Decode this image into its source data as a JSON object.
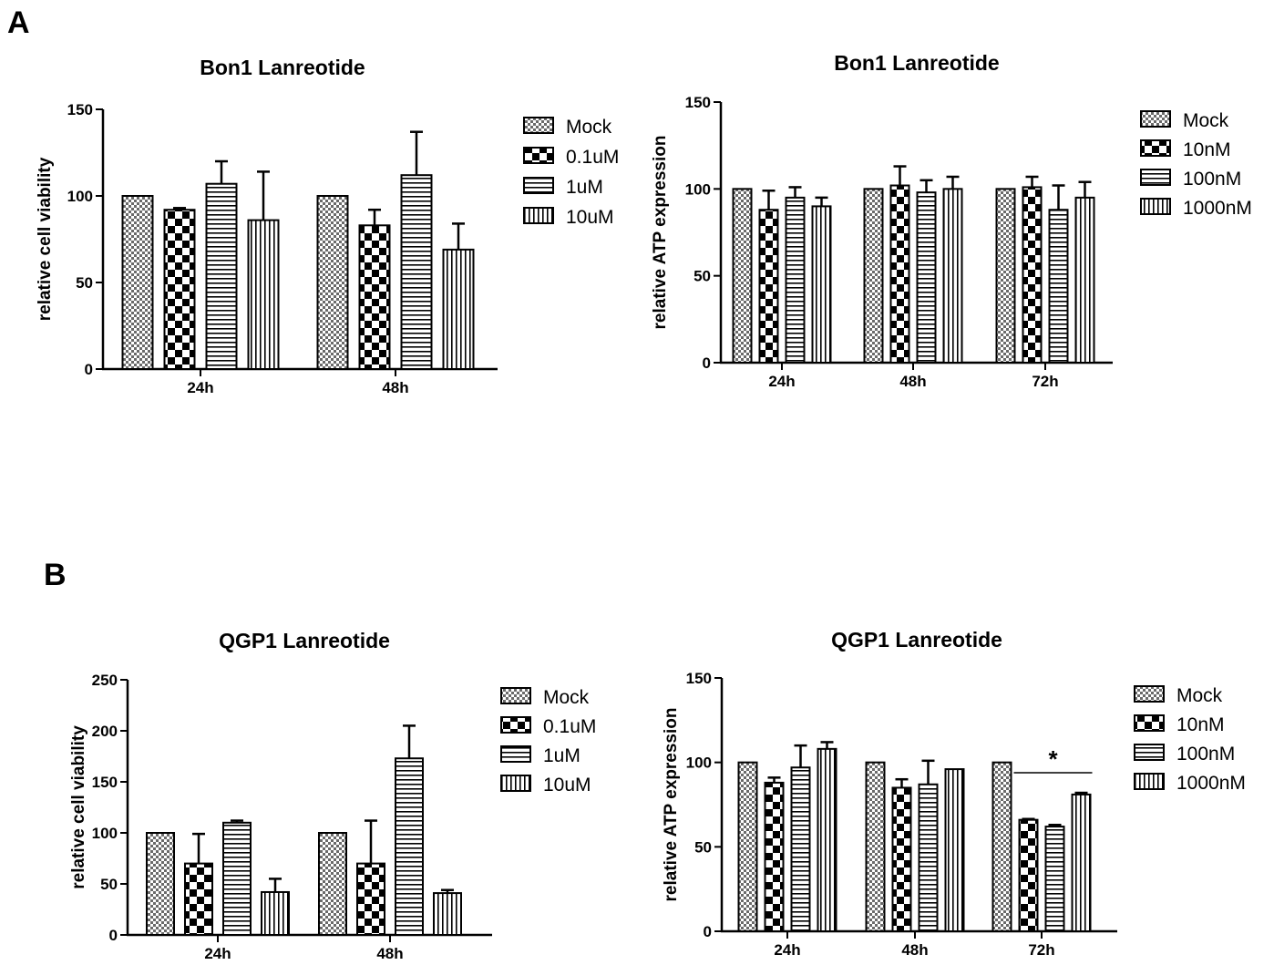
{
  "panels": [
    "A",
    "B"
  ],
  "chart_data": [
    {
      "type": "bar",
      "title": "Bon1 Lanreotide",
      "ylabel": "relative cell viability",
      "xlabel": "",
      "ylim": [
        0,
        150
      ],
      "yticks": [
        0,
        50,
        100,
        150
      ],
      "categories": [
        "24h",
        "48h"
      ],
      "series": [
        {
          "name": "Mock",
          "pattern": "checker-fine",
          "values": [
            100,
            100
          ],
          "errors": [
            0,
            0
          ]
        },
        {
          "name": "0.1uM",
          "pattern": "checker",
          "values": [
            92,
            83
          ],
          "errors": [
            1,
            9
          ]
        },
        {
          "name": "1uM",
          "pattern": "hstripe",
          "values": [
            107,
            112
          ],
          "errors": [
            13,
            25
          ]
        },
        {
          "name": "10uM",
          "pattern": "vstripe",
          "values": [
            86,
            69
          ],
          "errors": [
            28,
            15
          ]
        }
      ],
      "legend_position": "right",
      "grid": false
    },
    {
      "type": "bar",
      "title": "Bon1 Lanreotide",
      "ylabel": "relative ATP expression",
      "xlabel": "",
      "ylim": [
        0,
        150
      ],
      "yticks": [
        0,
        50,
        100,
        150
      ],
      "categories": [
        "24h",
        "48h",
        "72h"
      ],
      "series": [
        {
          "name": "Mock",
          "pattern": "checker-fine",
          "values": [
            100,
            100,
            100
          ],
          "errors": [
            0,
            0,
            0
          ]
        },
        {
          "name": "10nM",
          "pattern": "checker",
          "values": [
            88,
            102,
            101
          ],
          "errors": [
            11,
            11,
            6
          ]
        },
        {
          "name": "100nM",
          "pattern": "hstripe",
          "values": [
            95,
            98,
            88
          ],
          "errors": [
            6,
            7,
            14
          ]
        },
        {
          "name": "1000nM",
          "pattern": "vstripe",
          "values": [
            90,
            100,
            95
          ],
          "errors": [
            5,
            7,
            9
          ]
        }
      ],
      "legend_position": "right",
      "grid": false
    },
    {
      "type": "bar",
      "title": "QGP1 Lanreotide",
      "ylabel": "relative cell viability",
      "xlabel": "",
      "ylim": [
        0,
        250
      ],
      "yticks": [
        0,
        50,
        100,
        150,
        200,
        250
      ],
      "categories": [
        "24h",
        "48h"
      ],
      "series": [
        {
          "name": "Mock",
          "pattern": "checker-fine",
          "values": [
            100,
            100
          ],
          "errors": [
            0,
            0
          ]
        },
        {
          "name": "0.1uM",
          "pattern": "checker",
          "values": [
            70,
            70
          ],
          "errors": [
            29,
            42
          ]
        },
        {
          "name": "1uM",
          "pattern": "hstripe",
          "values": [
            110,
            173
          ],
          "errors": [
            2,
            32
          ]
        },
        {
          "name": "10uM",
          "pattern": "vstripe",
          "values": [
            42,
            41
          ],
          "errors": [
            13,
            3
          ]
        }
      ],
      "legend_position": "right",
      "grid": false
    },
    {
      "type": "bar",
      "title": "QGP1 Lanreotide",
      "ylabel": "relative ATP expression",
      "xlabel": "",
      "ylim": [
        0,
        150
      ],
      "yticks": [
        0,
        50,
        100,
        150
      ],
      "categories": [
        "24h",
        "48h",
        "72h"
      ],
      "series": [
        {
          "name": "Mock",
          "pattern": "checker-fine",
          "values": [
            100,
            100,
            100
          ],
          "errors": [
            0,
            0,
            0
          ]
        },
        {
          "name": "10nM",
          "pattern": "checker",
          "values": [
            88,
            85,
            66
          ],
          "errors": [
            3,
            5,
            0.5
          ]
        },
        {
          "name": "100nM",
          "pattern": "hstripe",
          "values": [
            97,
            87,
            62
          ],
          "errors": [
            13,
            14,
            1
          ]
        },
        {
          "name": "1000nM",
          "pattern": "vstripe",
          "values": [
            108,
            96,
            81
          ],
          "errors": [
            4,
            0,
            1
          ]
        }
      ],
      "annotations": [
        {
          "text": "*",
          "category": "72h",
          "series_span": [
            "10nM",
            "1000nM"
          ]
        }
      ],
      "legend_position": "right",
      "grid": false
    }
  ]
}
